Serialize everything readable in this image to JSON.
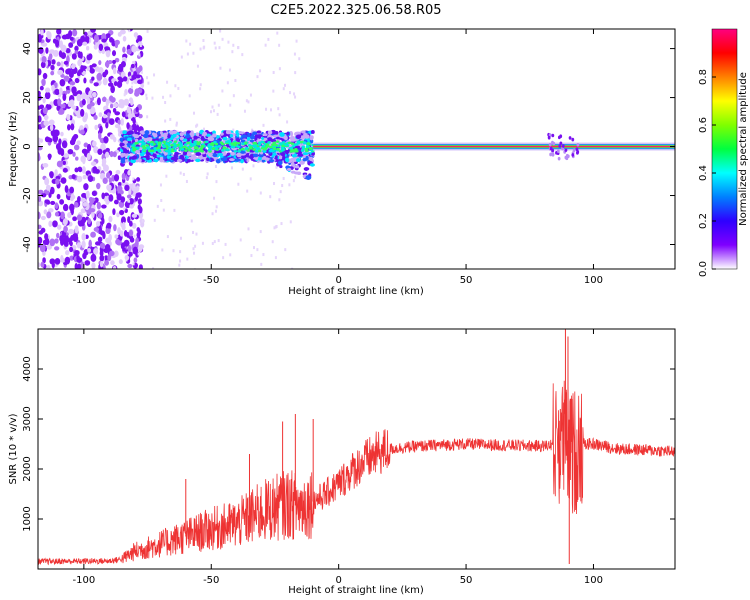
{
  "figure": {
    "title": "C2E5.2022.325.06.58.R05"
  },
  "chart_data": [
    {
      "type": "heatmap",
      "xlabel": "Height of straight line (km)",
      "ylabel": "Frequency (Hz)",
      "xlim": [
        -118,
        132
      ],
      "ylim": [
        -50,
        48
      ],
      "xticks": [
        -100,
        -50,
        0,
        50,
        100
      ],
      "yticks": [
        -40,
        -20,
        0,
        20,
        40
      ],
      "colorbar": {
        "label": "Normalized spectral amplitude",
        "range": [
          0,
          1
        ],
        "ticks": [
          0.0,
          0.2,
          0.4,
          0.6,
          0.8
        ],
        "colormap": [
          "#ffffff",
          "#7f00ff",
          "#2e00ff",
          "#0080ff",
          "#00ffff",
          "#00ff40",
          "#80ff00",
          "#ffff00",
          "#ff8000",
          "#ff0000",
          "#ff0080"
        ]
      },
      "features": {
        "carrier_frequency_hz": 0,
        "noise_region_x": [
          -118,
          -85
        ],
        "scatter_region_x": [
          -85,
          -10
        ],
        "stable_carrier_x": [
          -10,
          132
        ],
        "spike_x": 88
      }
    },
    {
      "type": "line",
      "xlabel": "Height of straight line (km)",
      "ylabel": "SNR (10 * v/v)",
      "xlim": [
        -118,
        132
      ],
      "ylim": [
        0,
        4800
      ],
      "xticks": [
        -100,
        -50,
        0,
        50,
        100
      ],
      "yticks": [
        1000,
        2000,
        3000,
        4000
      ],
      "series_color": "#ee3333",
      "envelope": {
        "x": [
          -118,
          -90,
          -85,
          -80,
          -70,
          -60,
          -50,
          -40,
          -30,
          -20,
          -15,
          -10,
          -5,
          0,
          5,
          10,
          15,
          20,
          30,
          40,
          50,
          60,
          70,
          80,
          85,
          88,
          90,
          92,
          95,
          100,
          110,
          120,
          132
        ],
        "y": [
          150,
          160,
          200,
          350,
          500,
          650,
          800,
          900,
          1150,
          1300,
          1250,
          1350,
          1500,
          1700,
          1950,
          2150,
          2300,
          2400,
          2450,
          2480,
          2500,
          2480,
          2470,
          2460,
          2500,
          2600,
          2400,
          2300,
          2500,
          2500,
          2400,
          2380,
          2350
        ]
      },
      "spikes": [
        {
          "x": -22,
          "y": 2950
        },
        {
          "x": -17,
          "y": 3100
        },
        {
          "x": -10,
          "y": 3000
        },
        {
          "x": -35,
          "y": 2300
        },
        {
          "x": -60,
          "y": 1800
        },
        {
          "x": 87,
          "y": 3200
        },
        {
          "x": 89,
          "y": 4800
        },
        {
          "x": 90,
          "y": 4650
        },
        {
          "x": 90.5,
          "y": 100
        },
        {
          "x": 91.5,
          "y": 3400
        }
      ]
    }
  ]
}
